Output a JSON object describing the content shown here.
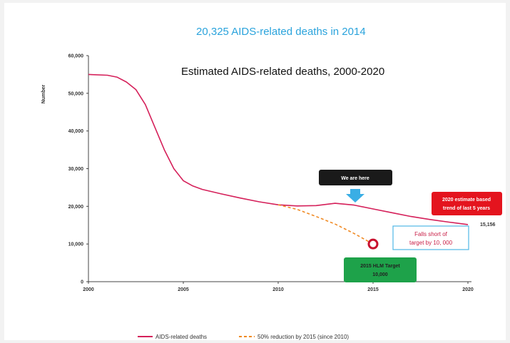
{
  "colors": {
    "headline": "#2aa3dc",
    "series_line": "#d5205a",
    "target_line": "#f08a24",
    "callout_dark": "#1a1a1a",
    "callout_red": "#e4141e",
    "callout_green": "#1ea24a",
    "callout_blue_border": "#4fb7e6",
    "arrow": "#3aaee5",
    "target_circle": "#c8102e"
  },
  "headline": "20,325  AIDS-related deaths in 2014",
  "chart_data": {
    "type": "line",
    "title": "Estimated AIDS-related deaths, 2000-2020",
    "xlabel": "",
    "ylabel": "Number",
    "xlim": [
      2000,
      2020
    ],
    "ylim": [
      0,
      60000
    ],
    "x_ticks": [
      "2000",
      "2005",
      "2010",
      "2015",
      "2020"
    ],
    "x_tick_values": [
      2000,
      2005,
      2010,
      2015,
      2020
    ],
    "y_ticks": [
      "0",
      "10,000",
      "20,000",
      "30,000",
      "40,000",
      "50,000",
      "60,000"
    ],
    "y_tick_values": [
      0,
      10000,
      20000,
      30000,
      40000,
      50000,
      60000
    ],
    "grid": false,
    "legend_position": "bottom",
    "series": [
      {
        "name": "AIDS-related deaths",
        "style": "solid",
        "x": [
          2000,
          2001,
          2001.5,
          2002,
          2002.5,
          2003,
          2003.5,
          2004,
          2004.5,
          2005,
          2005.5,
          2006,
          2007,
          2008,
          2009,
          2010,
          2011,
          2012,
          2013,
          2014,
          2015,
          2016,
          2017,
          2018,
          2019,
          2020
        ],
        "y": [
          55000,
          54800,
          54300,
          53000,
          51000,
          47000,
          41000,
          35000,
          30000,
          26800,
          25400,
          24500,
          23300,
          22200,
          21200,
          20400,
          20100,
          20200,
          20800,
          20325,
          19300,
          18300,
          17300,
          16500,
          15800,
          15156
        ]
      },
      {
        "name": "50% reduction by 2015 (since 2010)",
        "style": "dashed",
        "x": [
          2010,
          2011,
          2012,
          2013,
          2014,
          2015
        ],
        "y": [
          20400,
          19200,
          17300,
          15300,
          12800,
          10000
        ]
      }
    ],
    "annotations": {
      "we_are_here": "We  are here",
      "projection_box": [
        "2020 estimate based",
        "trend of last 5 years"
      ],
      "end_value_label": "15,156",
      "falls_short": [
        "Falls short of",
        "target by 10, 000"
      ],
      "target_box": [
        "2015 HLM Target",
        "10,000"
      ]
    }
  }
}
